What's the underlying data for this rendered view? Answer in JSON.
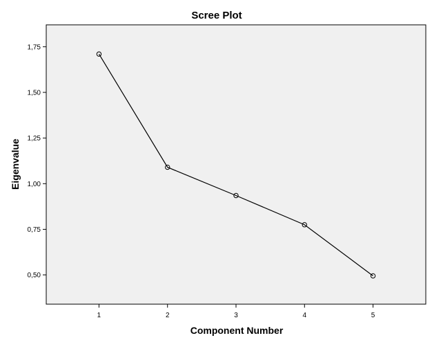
{
  "chart_data": {
    "type": "line",
    "title": "Scree Plot",
    "xlabel": "Component Number",
    "ylabel": "Eigenvalue",
    "x": [
      1,
      2,
      3,
      4,
      5
    ],
    "y": [
      1.71,
      1.09,
      0.935,
      0.775,
      0.495
    ],
    "x_ticks": [
      "1",
      "2",
      "3",
      "4",
      "5"
    ],
    "y_ticks": [
      {
        "value": 0.5,
        "label": "0,50"
      },
      {
        "value": 0.75,
        "label": "0,75"
      },
      {
        "value": 1.0,
        "label": "1,00"
      },
      {
        "value": 1.25,
        "label": "1,25"
      },
      {
        "value": 1.5,
        "label": "1,50"
      },
      {
        "value": 1.75,
        "label": "1,75"
      }
    ],
    "xlim": [
      0.23,
      5.77
    ],
    "ylim": [
      0.34,
      1.87
    ],
    "grid": false,
    "marker": "circle",
    "colors": {
      "plot_background": "#f0f0f0",
      "line": "#000000",
      "frame": "#000000"
    }
  }
}
